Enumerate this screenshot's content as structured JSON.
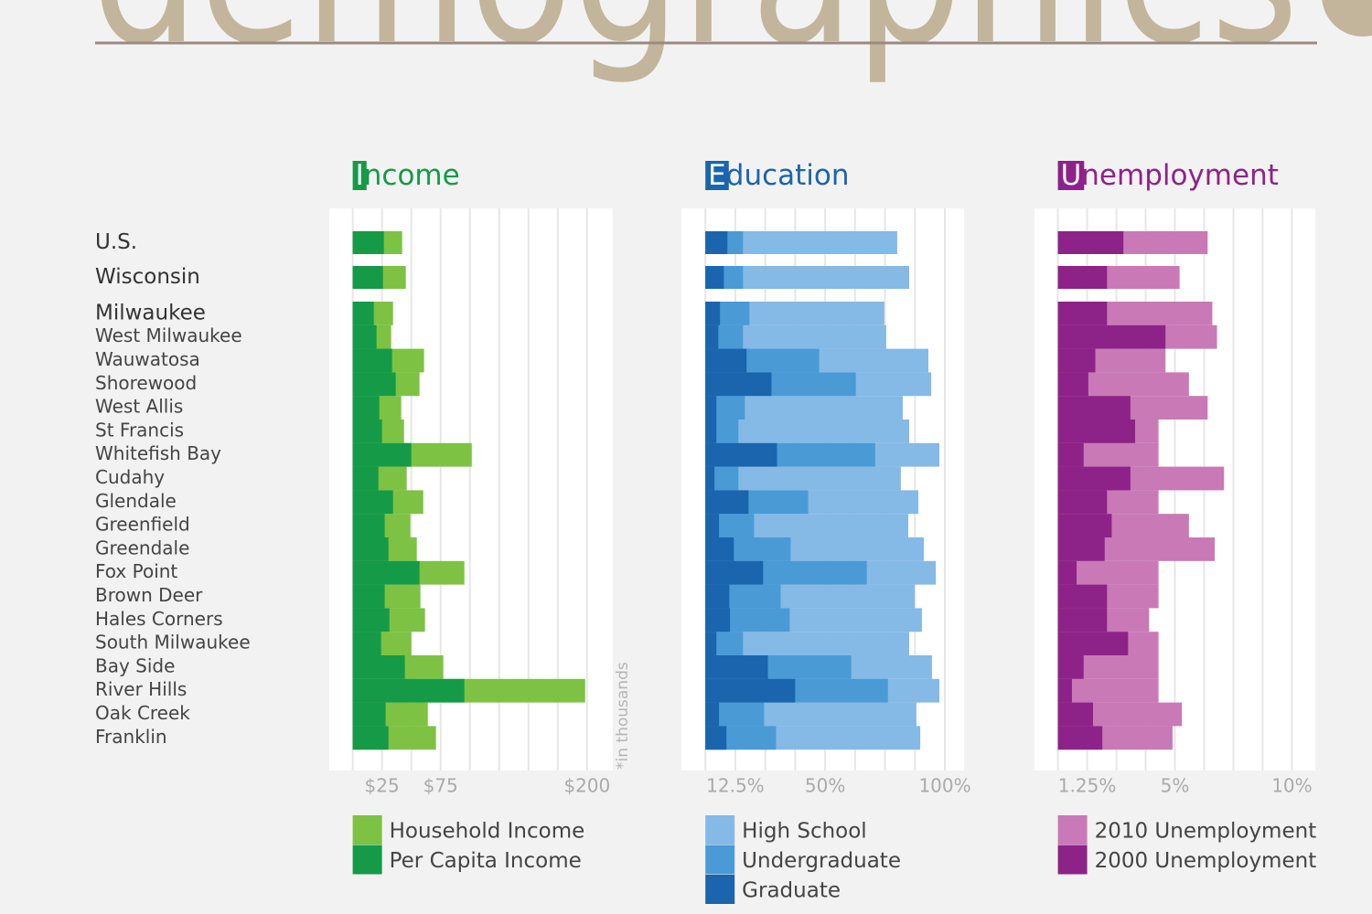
{
  "page_title": "demographics",
  "chart_data": [
    {
      "type": "bar",
      "orientation": "horizontal",
      "overlay": true,
      "title": "Income",
      "note": "*in thousands",
      "categories": [
        "U.S.",
        "Wisconsin",
        "Milwaukee",
        "West Milwaukee",
        "Wauwatosa",
        "Shorewood",
        "West Allis",
        "St Francis",
        "Whitefish Bay",
        "Cudahy",
        "Glendale",
        "Greenfield",
        "Greendale",
        "Fox Point",
        "Brown Deer",
        "Hales Corners",
        "South Milwaukee",
        "Bay Side",
        "River Hills",
        "Oak Creek",
        "Franklin"
      ],
      "series": [
        {
          "name": "Household Income",
          "color": "#7dc242",
          "values": [
            42.2,
            45.3,
            34.4,
            32.8,
            60.9,
            57.0,
            41.4,
            43.8,
            101.6,
            46.1,
            60.2,
            49.2,
            54.7,
            95.3,
            57.8,
            61.7,
            50.0,
            77.3,
            198.4,
            64.1,
            71.1
          ]
        },
        {
          "name": "Per Capita Income",
          "color": "#159a48",
          "values": [
            26.6,
            25.8,
            18.0,
            20.3,
            33.6,
            36.7,
            22.7,
            25.0,
            50.0,
            21.9,
            34.4,
            27.3,
            30.5,
            57.0,
            27.3,
            31.3,
            24.2,
            44.5,
            95.3,
            28.1,
            30.5
          ]
        }
      ],
      "xlim": [
        -20,
        222
      ],
      "xticks": [
        {
          "value": 25,
          "label": "$25"
        },
        {
          "value": 75,
          "label": "$75"
        },
        {
          "value": 200,
          "label": "$200"
        }
      ],
      "grid_lines": [
        0,
        25,
        50,
        75,
        100,
        125,
        150,
        175,
        200
      ]
    },
    {
      "type": "bar",
      "orientation": "horizontal",
      "overlay": true,
      "title": "Education",
      "series": [
        {
          "name": "High School",
          "color": "#85b9e6",
          "values": [
            80.1,
            85.1,
            74.7,
            75.5,
            93.1,
            94.3,
            82.4,
            85.1,
            97.7,
            81.6,
            88.9,
            84.7,
            91.2,
            96.2,
            87.4,
            90.4,
            85.1,
            94.6,
            97.7,
            88.1,
            89.7
          ]
        },
        {
          "name": "Undergraduate",
          "color": "#4a9ad6",
          "values": [
            15.7,
            15.7,
            18.4,
            15.7,
            47.5,
            62.8,
            16.5,
            13.8,
            70.9,
            13.8,
            42.9,
            20.3,
            35.6,
            67.4,
            31.4,
            35.2,
            15.7,
            60.9,
            76.2,
            24.5,
            29.5
          ]
        },
        {
          "name": "Graduate",
          "color": "#1a65ad",
          "values": [
            9.2,
            7.7,
            6.1,
            5.4,
            17.2,
            27.6,
            4.6,
            4.6,
            29.9,
            3.8,
            18.0,
            5.7,
            11.9,
            24.1,
            10.0,
            10.3,
            4.6,
            26.1,
            37.5,
            5.7,
            8.8
          ]
        }
      ],
      "xlim": [
        -10,
        108
      ],
      "xticks": [
        {
          "value": 12.5,
          "label": "12.5%"
        },
        {
          "value": 50,
          "label": "50%"
        },
        {
          "value": 100,
          "label": "100%"
        }
      ],
      "grid_lines": [
        0,
        12.5,
        25,
        37.5,
        50,
        62.5,
        75,
        87.5,
        100
      ]
    },
    {
      "type": "bar",
      "orientation": "horizontal",
      "overlay": true,
      "title": "Unemployment",
      "series": [
        {
          "name": "2010 Unemployment",
          "color": "#c979b6",
          "values": [
            6.4,
            5.2,
            6.6,
            6.8,
            4.6,
            5.6,
            6.4,
            4.3,
            4.3,
            7.1,
            4.3,
            5.6,
            6.7,
            4.3,
            4.3,
            3.9,
            4.3,
            4.3,
            4.3,
            5.3,
            4.9
          ]
        },
        {
          "name": "2000 Unemployment",
          "color": "#8d2388",
          "values": [
            2.8,
            2.1,
            2.1,
            4.6,
            1.6,
            1.3,
            3.1,
            3.3,
            1.1,
            3.1,
            2.1,
            2.3,
            2.0,
            0.8,
            2.1,
            2.1,
            3.0,
            1.1,
            0.6,
            1.5,
            1.9
          ]
        }
      ],
      "xlim": [
        -1,
        11
      ],
      "xticks": [
        {
          "value": 1.25,
          "label": "1.25%"
        },
        {
          "value": 5,
          "label": "5%"
        },
        {
          "value": 10,
          "label": "10%"
        }
      ],
      "grid_lines": [
        0,
        1.25,
        2.5,
        3.75,
        5,
        6.25,
        7.5,
        8.75,
        10
      ]
    }
  ]
}
